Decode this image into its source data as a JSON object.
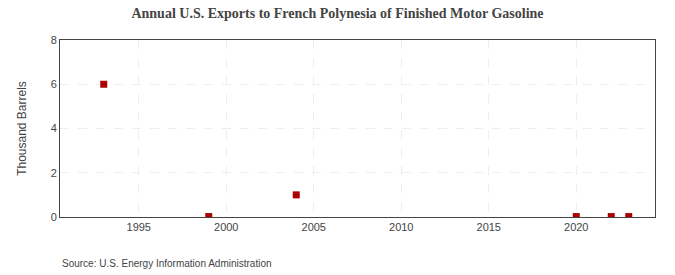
{
  "chart_data": {
    "type": "scatter",
    "title": "Annual U.S. Exports to French Polynesia of Finished Motor Gasoline",
    "y_label": "Thousand Barrels",
    "annotations": [
      "Source: U.S. Energy Information Administration"
    ],
    "x": [
      1993,
      1999,
      2004,
      2020,
      2022,
      2023
    ],
    "values": [
      6,
      0.02,
      1,
      0.02,
      0.02,
      0.02
    ],
    "color": "#aa0000",
    "marker": "square",
    "xlim": [
      1990.5,
      2024.5
    ],
    "xticks": [
      1995,
      2000,
      2005,
      2010,
      2015,
      2020
    ],
    "ylim": [
      0,
      8
    ],
    "yticks": [
      0,
      2,
      4,
      6,
      8
    ],
    "grid": true
  }
}
